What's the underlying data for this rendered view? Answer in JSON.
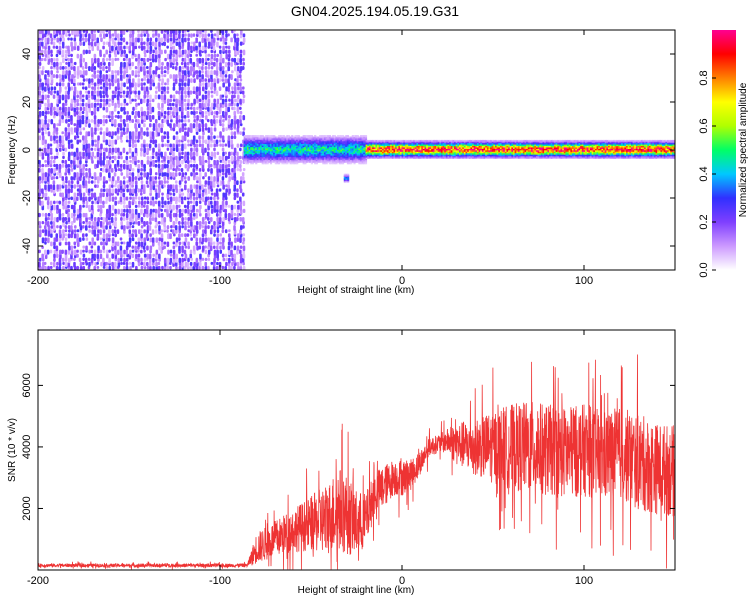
{
  "title": "GN04.2025.194.05.19.G31",
  "chart_data": [
    {
      "type": "heatmap",
      "title": "GN04.2025.194.05.19.G31",
      "xlabel": "Height of straight line (km)",
      "ylabel": "Frequency (Hz)",
      "xlim": [
        -200,
        150
      ],
      "ylim": [
        -50,
        50
      ],
      "xticks": [
        "-200",
        "-100",
        "0",
        "100"
      ],
      "yticks": [
        "-40",
        "-20",
        "0",
        "20",
        "40"
      ],
      "colorbar": {
        "label": "Normalized spectral amplitude",
        "range": [
          0,
          1
        ],
        "ticks": [
          "0.0",
          "0.2",
          "0.4",
          "0.6",
          "0.8"
        ],
        "colors": [
          "#ffffff",
          "#cc99ff",
          "#7f3fff",
          "#3030ff",
          "#00c8ff",
          "#00ff66",
          "#b0ff00",
          "#ffff00",
          "#ff8000",
          "#ff0000",
          "#ff0090"
        ]
      },
      "regions": [
        {
          "x": [
            -200,
            -87
          ],
          "freq_range": [
            -50,
            50
          ],
          "amplitude": 0.15,
          "description": "broadband noise"
        },
        {
          "x": [
            -87,
            -20
          ],
          "center_freq": 0,
          "width_hz": 10,
          "amplitude": 0.45
        },
        {
          "x": [
            -20,
            150
          ],
          "center_freq": 0,
          "width_hz": 6,
          "amplitude": 0.9
        },
        {
          "x": [
            -32,
            -30
          ],
          "center_freq": -12,
          "width_hz": 3,
          "amplitude": 0.35
        }
      ]
    },
    {
      "type": "line",
      "xlabel": "Height of straight line (km)",
      "ylabel": "SNR (10 * v/v)",
      "xlim": [
        -200,
        150
      ],
      "ylim": [
        0,
        7800
      ],
      "xticks": [
        "-200",
        "-100",
        "0",
        "100"
      ],
      "yticks": [
        "2000",
        "4000",
        "6000"
      ],
      "color": "#ee3333",
      "series": [
        {
          "x": [
            -200,
            -180,
            -160,
            -140,
            -120,
            -100,
            -85,
            -80,
            -70,
            -60,
            -50,
            -40,
            -35,
            -30,
            -25,
            -20,
            -15,
            -10,
            -5,
            0,
            5,
            10,
            15,
            20,
            25,
            30,
            40,
            50,
            60,
            70,
            80,
            90,
            100,
            110,
            120,
            130,
            140,
            150
          ],
          "values": [
            150,
            150,
            150,
            150,
            150,
            150,
            150,
            700,
            1000,
            1300,
            1500,
            1700,
            2000,
            1800,
            1500,
            1600,
            2500,
            2700,
            3000,
            3000,
            3100,
            3500,
            4000,
            4100,
            4200,
            4100,
            4000,
            4000,
            4000,
            4000,
            3900,
            3800,
            3900,
            3700,
            3800,
            3500,
            3300,
            3200
          ],
          "noise": [
            60,
            60,
            60,
            60,
            60,
            60,
            60,
            500,
            600,
            700,
            900,
            1200,
            1400,
            1300,
            1100,
            900,
            700,
            700,
            600,
            600,
            500,
            400,
            300,
            300,
            400,
            700,
            900,
            1200,
            1400,
            1500,
            1500,
            1500,
            1500,
            1500,
            1500,
            1600,
            1500,
            1500
          ]
        }
      ]
    }
  ]
}
